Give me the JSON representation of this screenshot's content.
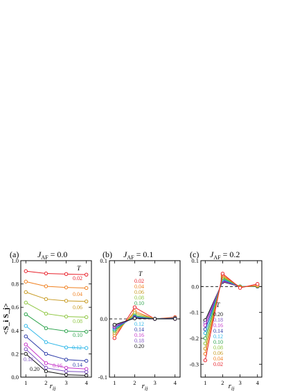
{
  "chart_data": [
    {
      "type": "line",
      "panel_label": "(a)",
      "title": "J_AF = 0.0",
      "title_main": "J",
      "title_sub": "AF",
      "title_value": " = 0.0",
      "xlabel": "r_ij",
      "xlabel_main": "r",
      "xlabel_sub": "ij",
      "ylabel": "<S_i S_j>",
      "x": [
        1,
        2,
        3,
        4
      ],
      "xlim": [
        0.75,
        4.25
      ],
      "ylim": [
        0.0,
        1.0
      ],
      "yticks": [
        "0.0",
        "0.2",
        "0.4",
        "0.6",
        "0.8",
        "1.0"
      ],
      "xticks": [
        "1",
        "2",
        "3",
        "4"
      ],
      "legend_title": "T",
      "series": [
        {
          "name": "0.02",
          "color": "#e8202a",
          "values": [
            0.91,
            0.89,
            0.885,
            0.88
          ]
        },
        {
          "name": "0.04",
          "color": "#f07f1e",
          "values": [
            0.82,
            0.78,
            0.77,
            0.765
          ]
        },
        {
          "name": "0.06",
          "color": "#c79a22",
          "values": [
            0.73,
            0.67,
            0.655,
            0.65
          ]
        },
        {
          "name": "0.08",
          "color": "#8dc63f",
          "values": [
            0.64,
            0.545,
            0.52,
            0.515
          ]
        },
        {
          "name": "0.10",
          "color": "#2aa24a",
          "values": [
            0.54,
            0.42,
            0.395,
            0.39
          ]
        },
        {
          "name": "0.12",
          "color": "#2bb6e8",
          "values": [
            0.44,
            0.3,
            0.255,
            0.25
          ]
        },
        {
          "name": "0.14",
          "color": "#2b3aa8",
          "values": [
            0.35,
            0.2,
            0.15,
            0.14
          ]
        },
        {
          "name": "0.16",
          "color": "#c533c9",
          "values": [
            0.28,
            0.12,
            0.08,
            0.07
          ]
        },
        {
          "name": "0.18",
          "color": "#7c4fc2",
          "values": [
            0.24,
            0.08,
            0.05,
            0.045
          ]
        },
        {
          "name": "0.20",
          "color": "#111111",
          "values": [
            0.2,
            0.05,
            0.02,
            0.015
          ]
        }
      ]
    },
    {
      "type": "line",
      "panel_label": "(b)",
      "title": "J_AF = 0.1",
      "title_main": "J",
      "title_sub": "AF",
      "title_value": " = 0.1",
      "xlabel": "r_ij",
      "xlabel_main": "r",
      "xlabel_sub": "ij",
      "x": [
        1,
        2,
        3,
        4
      ],
      "xlim": [
        0.75,
        4.25
      ],
      "ylim": [
        -0.1,
        0.1
      ],
      "yticks": [
        "-0.1",
        "0.0",
        "0.1"
      ],
      "xticks": [
        "1",
        "2",
        "3",
        "4"
      ],
      "legend_title": "T",
      "series": [
        {
          "name": "0.02",
          "color": "#e8202a",
          "values": [
            -0.033,
            0.02,
            0.0,
            0.003
          ]
        },
        {
          "name": "0.04",
          "color": "#f07f1e",
          "values": [
            -0.028,
            0.013,
            0.0,
            0.002
          ]
        },
        {
          "name": "0.06",
          "color": "#c79a22",
          "values": [
            -0.024,
            0.01,
            0.0,
            0.002
          ]
        },
        {
          "name": "0.08",
          "color": "#8dc63f",
          "values": [
            -0.021,
            0.007,
            0.0,
            0.001
          ]
        },
        {
          "name": "0.10",
          "color": "#2aa24a",
          "values": [
            -0.019,
            0.005,
            0.0,
            0.001
          ]
        },
        {
          "name": "0.12",
          "color": "#2bb6e8",
          "values": [
            -0.017,
            0.004,
            0.0,
            0.001
          ]
        },
        {
          "name": "0.14",
          "color": "#2b3aa8",
          "values": [
            -0.015,
            0.003,
            0.0,
            0.001
          ]
        },
        {
          "name": "0.16",
          "color": "#c533c9",
          "values": [
            -0.013,
            0.002,
            0.0,
            0.0
          ]
        },
        {
          "name": "0.18",
          "color": "#7c4fc2",
          "values": [
            -0.012,
            0.002,
            0.0,
            0.0
          ]
        },
        {
          "name": "0.20",
          "color": "#111111",
          "values": [
            -0.01,
            0.001,
            0.0,
            0.0
          ]
        }
      ]
    },
    {
      "type": "line",
      "panel_label": "(c)",
      "title": "J_AF = 0.2",
      "title_main": "J",
      "title_sub": "AF",
      "title_value": " = 0.2",
      "xlabel": "r_ij",
      "xlabel_main": "r",
      "xlabel_sub": "ij",
      "x": [
        1,
        2,
        3,
        4
      ],
      "xlim": [
        0.75,
        4.25
      ],
      "ylim": [
        -0.35,
        0.1
      ],
      "yticks": [
        "-0.3",
        "-0.2",
        "-0.1",
        "0.0",
        "0.1"
      ],
      "xticks": [
        "1",
        "2",
        "3",
        "4"
      ],
      "legend_title": "T",
      "series": [
        {
          "name": "0.20",
          "color": "#111111",
          "values": [
            -0.13,
            0.018,
            0.0,
            0.0
          ]
        },
        {
          "name": "0.18",
          "color": "#7c4fc2",
          "values": [
            -0.14,
            0.02,
            0.0,
            0.0
          ]
        },
        {
          "name": "0.16",
          "color": "#c533c9",
          "values": [
            -0.15,
            0.022,
            0.0,
            0.0
          ]
        },
        {
          "name": "0.14",
          "color": "#2b3aa8",
          "values": [
            -0.165,
            0.025,
            0.0,
            0.0
          ]
        },
        {
          "name": "0.12",
          "color": "#2bb6e8",
          "values": [
            -0.18,
            0.028,
            0.0,
            0.001
          ]
        },
        {
          "name": "0.10",
          "color": "#2aa24a",
          "values": [
            -0.2,
            0.032,
            0.0,
            0.001
          ]
        },
        {
          "name": "0.08",
          "color": "#8dc63f",
          "values": [
            -0.22,
            0.036,
            -0.001,
            0.002
          ]
        },
        {
          "name": "0.06",
          "color": "#c79a22",
          "values": [
            -0.24,
            0.04,
            -0.002,
            0.003
          ]
        },
        {
          "name": "0.04",
          "color": "#f07f1e",
          "values": [
            -0.26,
            0.045,
            -0.003,
            0.005
          ]
        },
        {
          "name": "0.02",
          "color": "#e8202a",
          "values": [
            -0.285,
            0.05,
            -0.005,
            0.01
          ]
        }
      ]
    }
  ]
}
